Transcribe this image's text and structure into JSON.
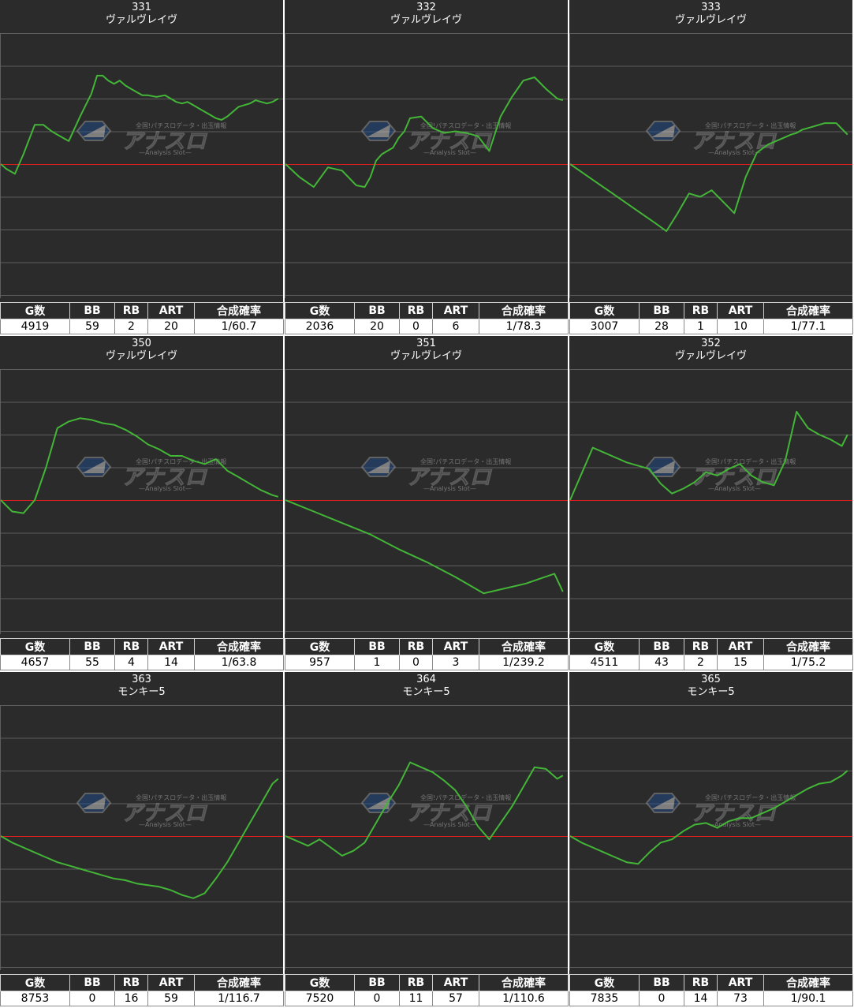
{
  "columns": [
    "G数",
    "BB",
    "RB",
    "ART",
    "合成確率"
  ],
  "colors": {
    "background": "#2b2b2b",
    "grid": "#5e5e5e",
    "zero_line": "#e01e1e",
    "series": "#43b537",
    "text": "#ffffff"
  },
  "watermark": {
    "lead": "全国!パチスロデータ・出玉情報",
    "brand": "アナスロ",
    "sub": "—Analysis Slot—"
  },
  "machines": [
    {
      "number": "331",
      "name": "ヴァルヴレイヴ",
      "stats": {
        "g": "4919",
        "bb": "59",
        "rb": "2",
        "art": "20",
        "prob": "1/60.7"
      },
      "chart_data": {
        "type": "line",
        "x": [
          0,
          2,
          5,
          8,
          12,
          15,
          18,
          20,
          24,
          28,
          32,
          34,
          36,
          38,
          40,
          42,
          44,
          46,
          48,
          50,
          52,
          55,
          58,
          60,
          62,
          64,
          66,
          68,
          70,
          72,
          74,
          76,
          78,
          80,
          82,
          84,
          86,
          88,
          90,
          92,
          94,
          96,
          98
        ],
        "y": [
          0,
          -0.15,
          -0.3,
          0.3,
          1.2,
          1.2,
          1.0,
          0.9,
          0.7,
          1.45,
          2.15,
          2.7,
          2.7,
          2.55,
          2.45,
          2.55,
          2.4,
          2.3,
          2.2,
          2.1,
          2.1,
          2.05,
          2.1,
          2.0,
          1.9,
          1.85,
          1.9,
          1.8,
          1.7,
          1.6,
          1.5,
          1.4,
          1.35,
          1.45,
          1.6,
          1.75,
          1.8,
          1.85,
          1.95,
          1.9,
          1.85,
          1.9,
          2.0
        ]
      }
    },
    {
      "number": "332",
      "name": "ヴァルヴレイヴ",
      "stats": {
        "g": "2036",
        "bb": "20",
        "rb": "0",
        "art": "6",
        "prob": "1/78.3"
      },
      "chart_data": {
        "type": "line",
        "x": [
          0,
          5,
          10,
          15,
          20,
          25,
          28,
          30,
          32,
          34,
          36,
          38,
          40,
          42,
          44,
          48,
          52,
          56,
          60,
          64,
          68,
          72,
          76,
          80,
          84,
          88,
          92,
          96,
          98
        ],
        "y": [
          0,
          -0.4,
          -0.7,
          -0.1,
          -0.2,
          -0.65,
          -0.7,
          -0.4,
          0.1,
          0.3,
          0.4,
          0.5,
          0.8,
          1.0,
          1.4,
          1.45,
          1.1,
          0.95,
          1.0,
          0.95,
          0.85,
          0.4,
          1.45,
          2.05,
          2.55,
          2.65,
          2.3,
          2.0,
          1.95
        ]
      }
    },
    {
      "number": "333",
      "name": "ヴァルヴレイヴ",
      "stats": {
        "g": "3007",
        "bb": "28",
        "rb": "1",
        "art": "10",
        "prob": "1/77.1"
      },
      "chart_data": {
        "type": "line",
        "x": [
          0,
          5,
          10,
          15,
          20,
          25,
          30,
          34,
          38,
          42,
          46,
          50,
          54,
          58,
          62,
          66,
          70,
          74,
          78,
          80,
          82,
          86,
          90,
          94,
          98
        ],
        "y": [
          0,
          -0.3,
          -0.6,
          -0.9,
          -1.2,
          -1.5,
          -1.8,
          -2.05,
          -1.5,
          -0.9,
          -1.0,
          -0.8,
          -1.15,
          -1.5,
          -0.4,
          0.35,
          0.6,
          0.75,
          0.9,
          0.95,
          1.05,
          1.15,
          1.25,
          1.25,
          0.9
        ]
      }
    },
    {
      "number": "350",
      "name": "ヴァルヴレイヴ",
      "stats": {
        "g": "4657",
        "bb": "55",
        "rb": "4",
        "art": "14",
        "prob": "1/63.8"
      },
      "chart_data": {
        "type": "line",
        "x": [
          0,
          4,
          8,
          12,
          16,
          20,
          24,
          28,
          32,
          36,
          40,
          44,
          48,
          52,
          56,
          60,
          64,
          68,
          72,
          76,
          80,
          84,
          88,
          92,
          96,
          98
        ],
        "y": [
          0,
          -0.35,
          -0.4,
          0.0,
          1.0,
          2.2,
          2.4,
          2.5,
          2.45,
          2.35,
          2.3,
          2.15,
          1.95,
          1.7,
          1.55,
          1.35,
          1.35,
          1.2,
          1.1,
          1.25,
          0.9,
          0.7,
          0.5,
          0.3,
          0.15,
          0.1
        ]
      }
    },
    {
      "number": "351",
      "name": "ヴァルヴレイヴ",
      "stats": {
        "g": "957",
        "bb": "1",
        "rb": "0",
        "art": "3",
        "prob": "1/239.2"
      },
      "chart_data": {
        "type": "line",
        "x": [
          0,
          10,
          20,
          30,
          40,
          50,
          60,
          70,
          75,
          80,
          85,
          90,
          95,
          98
        ],
        "y": [
          0,
          -0.35,
          -0.7,
          -1.05,
          -1.5,
          -1.9,
          -2.35,
          -2.85,
          -2.75,
          -2.65,
          -2.55,
          -2.4,
          -2.25,
          -2.8
        ]
      }
    },
    {
      "number": "352",
      "name": "ヴァルヴレイヴ",
      "stats": {
        "g": "4511",
        "bb": "43",
        "rb": "2",
        "art": "15",
        "prob": "1/75.2"
      },
      "chart_data": {
        "type": "line",
        "x": [
          0,
          4,
          8,
          12,
          16,
          20,
          24,
          28,
          32,
          36,
          40,
          44,
          48,
          52,
          56,
          60,
          64,
          68,
          72,
          76,
          80,
          84,
          88,
          92,
          96,
          98
        ],
        "y": [
          0,
          0.8,
          1.6,
          1.45,
          1.3,
          1.15,
          1.05,
          0.95,
          0.5,
          0.2,
          0.35,
          0.55,
          0.85,
          0.75,
          0.95,
          1.1,
          0.75,
          0.55,
          0.45,
          1.2,
          2.7,
          2.2,
          2.0,
          1.85,
          1.65,
          2.0
        ]
      }
    },
    {
      "number": "363",
      "name": "モンキー5",
      "stats": {
        "g": "8753",
        "bb": "0",
        "rb": "16",
        "art": "59",
        "prob": "1/116.7"
      },
      "chart_data": {
        "type": "line",
        "x": [
          0,
          4,
          8,
          12,
          16,
          20,
          24,
          28,
          32,
          36,
          40,
          44,
          48,
          52,
          56,
          60,
          64,
          68,
          72,
          76,
          80,
          84,
          88,
          92,
          96,
          98
        ],
        "y": [
          0,
          -0.2,
          -0.35,
          -0.5,
          -0.65,
          -0.8,
          -0.9,
          -1.0,
          -1.1,
          -1.2,
          -1.3,
          -1.35,
          -1.45,
          -1.5,
          -1.55,
          -1.65,
          -1.8,
          -1.9,
          -1.75,
          -1.3,
          -0.8,
          -0.2,
          0.4,
          1.0,
          1.6,
          1.75
        ]
      }
    },
    {
      "number": "364",
      "name": "モンキー5",
      "stats": {
        "g": "7520",
        "bb": "0",
        "rb": "11",
        "art": "57",
        "prob": "1/110.6"
      },
      "chart_data": {
        "type": "line",
        "x": [
          0,
          4,
          8,
          12,
          16,
          20,
          24,
          28,
          32,
          36,
          40,
          44,
          48,
          52,
          56,
          60,
          64,
          68,
          72,
          76,
          80,
          84,
          88,
          92,
          96,
          98
        ],
        "y": [
          0,
          -0.15,
          -0.3,
          -0.1,
          -0.35,
          -0.6,
          -0.45,
          -0.2,
          0.4,
          1.0,
          1.55,
          2.25,
          2.1,
          1.95,
          1.7,
          1.4,
          0.9,
          0.3,
          -0.1,
          0.4,
          0.9,
          1.5,
          2.1,
          2.05,
          1.75,
          1.85
        ]
      }
    },
    {
      "number": "365",
      "name": "モンキー5",
      "stats": {
        "g": "7835",
        "bb": "0",
        "rb": "14",
        "art": "73",
        "prob": "1/90.1"
      },
      "chart_data": {
        "type": "line",
        "x": [
          0,
          4,
          8,
          12,
          16,
          20,
          24,
          28,
          32,
          36,
          40,
          44,
          48,
          52,
          56,
          60,
          64,
          68,
          72,
          76,
          80,
          84,
          88,
          92,
          96,
          98
        ],
        "y": [
          0,
          -0.2,
          -0.35,
          -0.5,
          -0.65,
          -0.8,
          -0.85,
          -0.5,
          -0.2,
          -0.1,
          0.15,
          0.35,
          0.4,
          0.25,
          0.45,
          0.55,
          0.55,
          0.7,
          0.85,
          1.05,
          1.25,
          1.45,
          1.6,
          1.65,
          1.85,
          2.0
        ]
      }
    }
  ]
}
